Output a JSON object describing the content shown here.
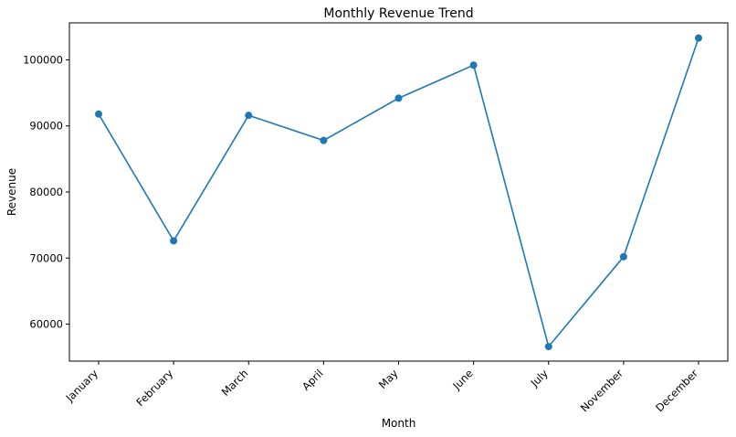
{
  "chart_data": {
    "type": "line",
    "title": "Monthly Revenue Trend",
    "xlabel": "Month",
    "ylabel": "Revenue",
    "categories": [
      "January",
      "February",
      "March",
      "April",
      "May",
      "June",
      "July",
      "November",
      "December"
    ],
    "series": [
      {
        "values": [
          91800,
          72600,
          91600,
          87800,
          94200,
          99200,
          56600,
          70200,
          103300
        ],
        "color": "#1f77b4"
      }
    ],
    "ylim": [
      54400,
      105600
    ],
    "yticks": [
      60000,
      70000,
      80000,
      90000,
      100000
    ],
    "ytick_labels": [
      "60000",
      "70000",
      "80000",
      "90000",
      "100000"
    ],
    "grid": false,
    "legend": "none"
  }
}
